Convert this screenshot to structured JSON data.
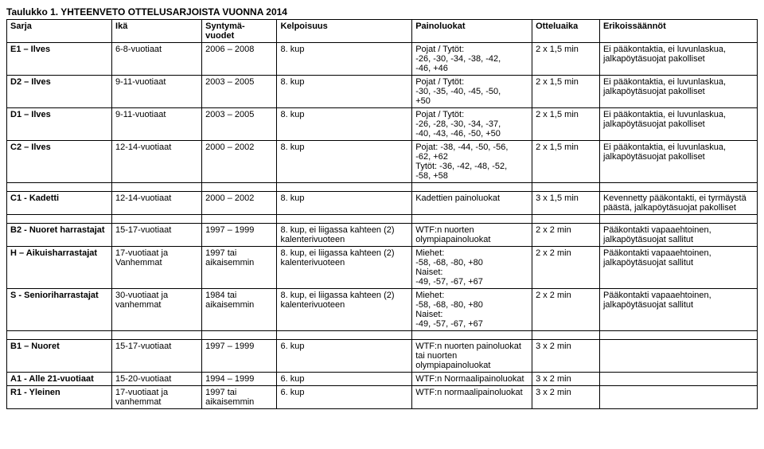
{
  "title": "Taulukko 1. YHTEENVETO OTTELUSARJOISTA VUONNA 2014",
  "columns": [
    "Sarja",
    "Ikä",
    "Syntymä-vuodet",
    "Kelpoisuus",
    "Painoluokat",
    "Otteluaika",
    "Erikoissäännöt"
  ],
  "rows": [
    {
      "cells": [
        "E1 – Ilves",
        "6-8-vuotiaat",
        "2006 – 2008",
        "8. kup",
        "Pojat / Tytöt:\n-26,  -30, -34, -38, -42,\n-46, +46",
        "2 x 1,5 min",
        "Ei pääkontaktia, ei luvunlaskua, jalkapöytäsuojat pakolliset"
      ]
    },
    {
      "cells": [
        "D2 – Ilves",
        "9-11-vuotiaat",
        "2003 – 2005",
        "8. kup",
        "Pojat / Tytöt:\n-30, -35, -40, -45, -50,\n+50",
        "2 x 1,5 min",
        "Ei pääkontaktia, ei luvunlaskua, jalkapöytäsuojat pakolliset"
      ]
    },
    {
      "cells": [
        "D1 – Ilves",
        "9-11-vuotiaat",
        "2003 – 2005",
        "8. kup",
        "Pojat / Tytöt:\n-26, -28, -30, -34, -37,\n-40, -43, -46, -50, +50",
        "2 x 1,5 min",
        "Ei pääkontaktia, ei luvunlaskua, jalkapöytäsuojat pakolliset"
      ]
    },
    {
      "cells": [
        "C2 – Ilves",
        "12-14-vuotiaat",
        "2000 – 2002",
        "8. kup",
        "Pojat: -38, -44, -50, -56,\n-62, +62\nTytöt: -36, -42, -48, -52,\n-58, +58",
        "2 x 1,5 min",
        "Ei pääkontaktia, ei luvunlaskua, jalkapöytäsuojat pakolliset"
      ]
    },
    {
      "spacer": true
    },
    {
      "cells": [
        "C1 - Kadetti",
        "12-14-vuotiaat",
        "2000 – 2002",
        "8. kup",
        "Kadettien painoluokat",
        "3 x 1,5 min",
        "Kevennetty pääkontakti, ei tyrmäystä päästä, jalkapöytäsuojat pakolliset"
      ]
    },
    {
      "spacer": true
    },
    {
      "cells": [
        "B2 - Nuoret harrastajat",
        "15-17-vuotiaat",
        "1997 – 1999",
        "8. kup, ei liigassa kahteen (2) kalenterivuoteen",
        "WTF:n nuorten olympiapainoluokat",
        "2 x 2 min",
        "Pääkontakti vapaaehtoinen, jalkapöytäsuojat sallitut"
      ]
    },
    {
      "cells": [
        "H – Aikuisharrastajat",
        "17-vuotiaat ja Vanhemmat",
        "1997 tai aikaisemmin",
        "8. kup, ei liigassa kahteen (2) kalenterivuoteen",
        "Miehet:\n-58, -68, -80, +80\nNaiset:\n-49, -57, -67, +67",
        "2 x 2 min",
        "Pääkontakti vapaaehtoinen, jalkapöytäsuojat sallitut"
      ]
    },
    {
      "cells": [
        "S - Senioriharrastajat",
        "30-vuotiaat ja vanhemmat",
        "1984 tai aikaisemmin",
        "8. kup, ei liigassa kahteen (2) kalenterivuoteen",
        "Miehet:\n-58, -68, -80, +80\nNaiset:\n-49, -57, -67, +67",
        "2 x 2 min",
        "Pääkontakti vapaaehtoinen, jalkapöytäsuojat sallitut"
      ]
    },
    {
      "spacer": true
    },
    {
      "cells": [
        "B1 – Nuoret",
        "15-17-vuotiaat",
        "1997 – 1999",
        "6. kup",
        "WTF:n nuorten painoluokat tai nuorten olympiapainoluokat",
        "3 x 2 min",
        ""
      ]
    },
    {
      "cells": [
        "A1 - Alle 21-vuotiaat",
        "15-20-vuotiaat",
        "1994 – 1999",
        "6. kup",
        "WTF:n Normaalipainoluokat",
        "3 x 2 min",
        ""
      ]
    },
    {
      "cells": [
        "R1 - Yleinen",
        "17-vuotiaat ja vanhemmat",
        "1997 tai aikaisemmin",
        "6. kup",
        "WTF:n normaalipainoluokat",
        "3 x 2 min",
        ""
      ]
    }
  ]
}
